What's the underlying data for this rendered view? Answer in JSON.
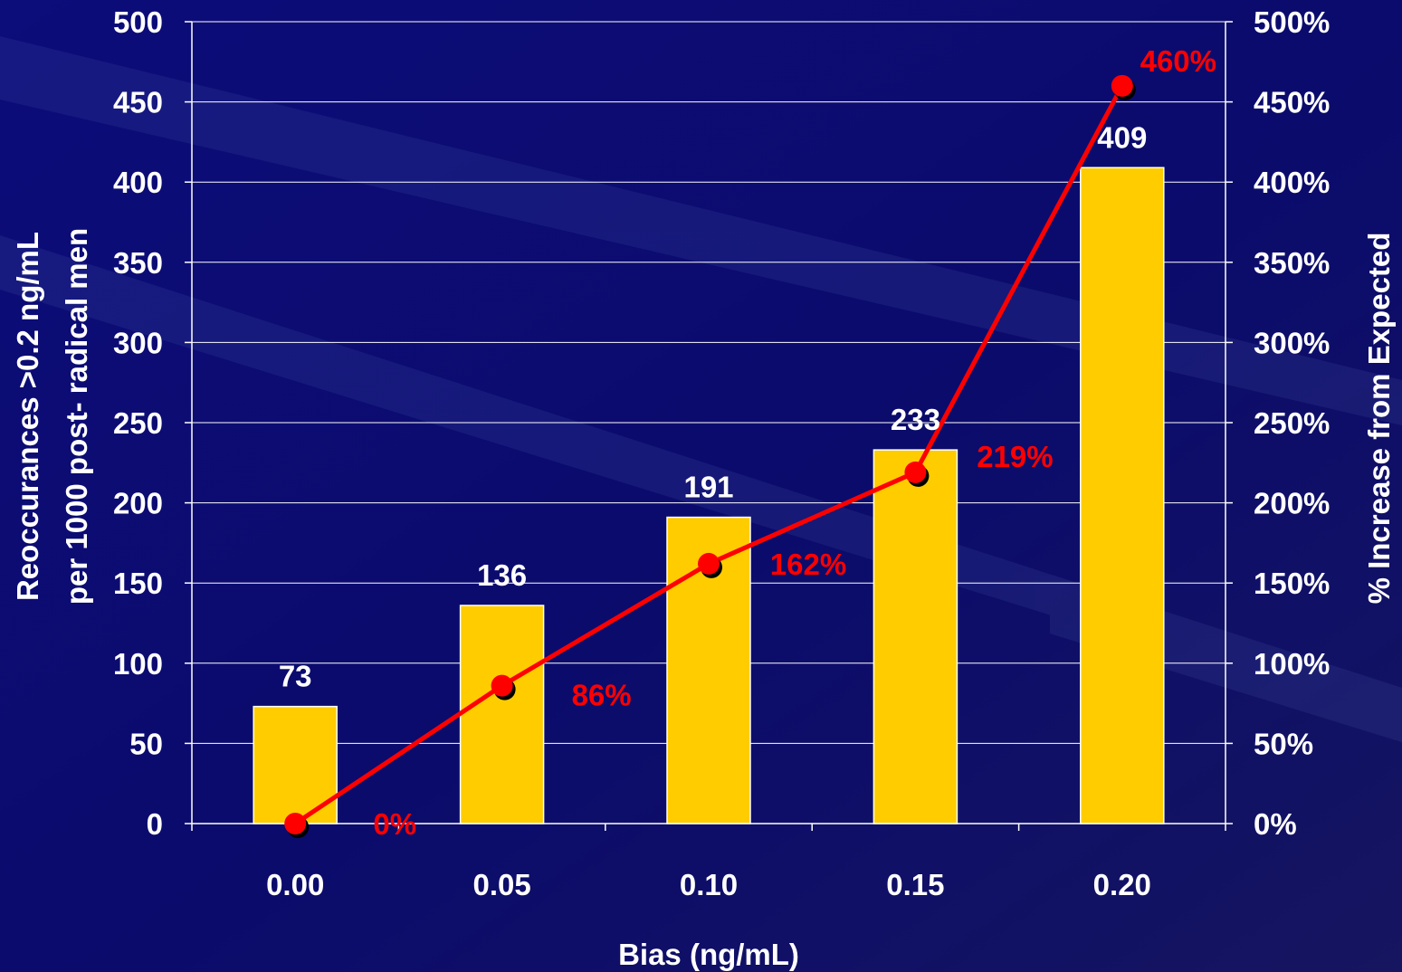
{
  "chart_data": {
    "type": "bar",
    "categories": [
      "0.00",
      "0.05",
      "0.10",
      "0.15",
      "0.20"
    ],
    "xlabel": "Bias (ng/mL)",
    "ylabel_lines": [
      "Reoccurances >0.2 ng/mL",
      "per 1000 post- radical men"
    ],
    "y2label": "% Increase from Expected",
    "ylim": [
      0,
      500
    ],
    "y_ticks": [
      0,
      50,
      100,
      150,
      200,
      250,
      300,
      350,
      400,
      450,
      500
    ],
    "y2lim": [
      0,
      500
    ],
    "y2_ticks": [
      "0%",
      "50%",
      "100%",
      "150%",
      "200%",
      "250%",
      "300%",
      "350%",
      "400%",
      "450%",
      "500%"
    ],
    "grid": true,
    "series": [
      {
        "type": "bar",
        "values": [
          73,
          136,
          191,
          233,
          409
        ],
        "labels": [
          "73",
          "136",
          "191",
          "233",
          "409"
        ],
        "color": "#ffcc00"
      },
      {
        "type": "line",
        "axis": "right",
        "values": [
          0,
          86,
          162,
          219,
          460
        ],
        "labels": [
          "0%",
          "86%",
          "162%",
          "219%",
          "460%"
        ],
        "color": "#ff0000"
      }
    ]
  },
  "colors": {
    "background": "#0a0a6e",
    "bar": "#ffcc00",
    "line": "#ff0000",
    "text": "#ffffff",
    "grid": "#ffffff"
  }
}
